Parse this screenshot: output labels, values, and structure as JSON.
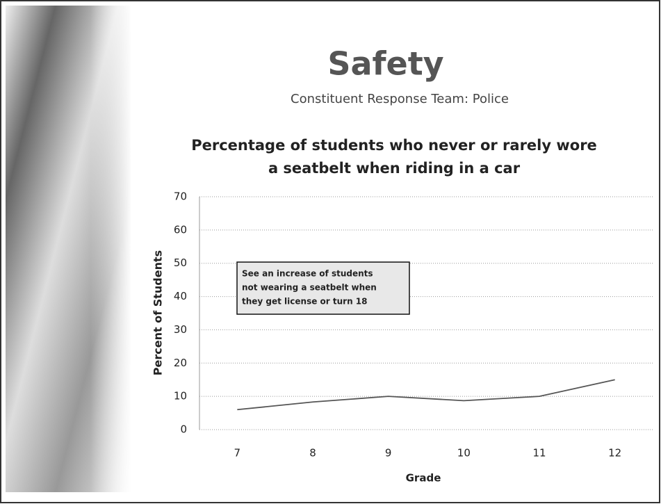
{
  "header": {
    "title": "Safety",
    "subtitle": "Constituent Response Team: Police"
  },
  "chart_data": {
    "type": "line",
    "title": [
      "Percentage of students who never or rarely wore",
      "a seatbelt when riding in a car"
    ],
    "x_label": "Grade",
    "y_label": "Percent of Students",
    "categories": [
      "7",
      "8",
      "9",
      "10",
      "11",
      "12"
    ],
    "series": [
      {
        "name": "Percent of Students",
        "color": "#555555",
        "values": [
          6,
          8.3,
          10,
          8.7,
          10,
          15
        ]
      }
    ],
    "ylim": [
      0,
      70
    ],
    "yticks": [
      0,
      10,
      20,
      30,
      40,
      50,
      60,
      70
    ],
    "grid": true,
    "annotation": [
      "See an increase of students",
      "not wearing a seatbelt when",
      "they get license or turn 18"
    ]
  }
}
